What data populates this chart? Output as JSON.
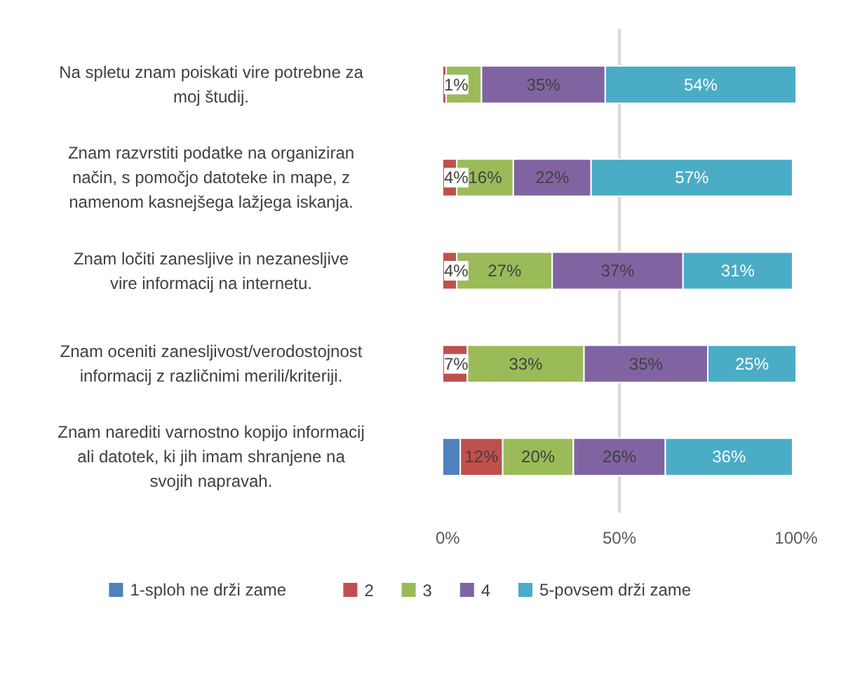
{
  "chart_data": {
    "type": "bar",
    "orientation": "horizontal",
    "stacked": true,
    "categories": [
      "Na spletu znam poiskati vire potrebne za moj študij.",
      "Znam razvrstiti podatke na organiziran način, s pomočjo datoteke in mape, z namenom kasnejšega lažjega iskanja.",
      "Znam ločiti zanesljive in nezanesljive vire informacij na internetu.",
      "Znam oceniti zanesljivost/verodostojnost informacij z različnimi merili/kriteriji.",
      "Znam narediti varnostno kopijo informacij ali datotek, ki jih imam shranjene na svojih napravah."
    ],
    "series": [
      {
        "name": "1-sploh ne drži zame",
        "color": "#4f81bd",
        "values": [
          0,
          0,
          0,
          0,
          5
        ],
        "value_labels": [
          null,
          null,
          null,
          null,
          null
        ]
      },
      {
        "name": "2",
        "color": "#c0504d",
        "values": [
          1,
          4,
          4,
          7,
          12
        ],
        "value_labels": [
          "1%",
          "4%",
          "4%",
          "7%",
          "12%"
        ]
      },
      {
        "name": "3",
        "color": "#9bbb59",
        "values": [
          10,
          16,
          27,
          33,
          20
        ],
        "value_labels": [
          null,
          "16%",
          "27%",
          "33%",
          "20%"
        ]
      },
      {
        "name": "4",
        "color": "#8064a2",
        "values": [
          35,
          22,
          37,
          35,
          26
        ],
        "value_labels": [
          "35%",
          "22%",
          "37%",
          "35%",
          "26%"
        ]
      },
      {
        "name": "5-povsem drži zame",
        "color": "#4bacc6",
        "values": [
          54,
          57,
          31,
          25,
          36
        ],
        "value_labels": [
          "54%",
          "57%",
          "31%",
          "25%",
          "36%"
        ]
      }
    ],
    "xlim": [
      0,
      100
    ],
    "xticks": [
      {
        "value": 0,
        "label": "0%"
      },
      {
        "value": 50,
        "label": "50%"
      },
      {
        "value": 100,
        "label": "100%"
      }
    ],
    "grid": "x",
    "legend": "bottom"
  }
}
